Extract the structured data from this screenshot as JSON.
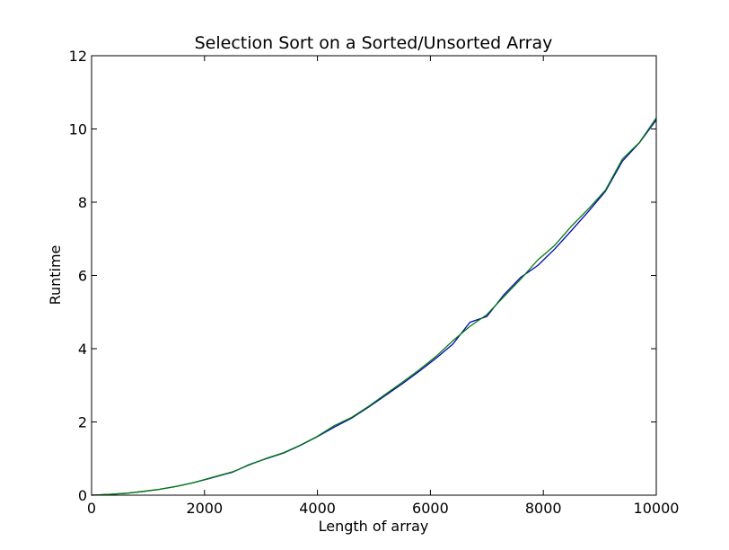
{
  "chart_data": {
    "type": "line",
    "title": "Selection Sort on a Sorted/Unsorted Array",
    "xlabel": "Length of array",
    "ylabel": "Runtime",
    "xlim": [
      0,
      10000
    ],
    "ylim": [
      0,
      12
    ],
    "xticks": [
      0,
      2000,
      4000,
      6000,
      8000,
      10000
    ],
    "yticks": [
      0,
      2,
      4,
      6,
      8,
      10,
      12
    ],
    "xtick_labels": [
      "0",
      "2000",
      "4000",
      "6000",
      "8000",
      "10000"
    ],
    "ytick_labels": [
      "0",
      "2",
      "4",
      "6",
      "8",
      "10",
      "12"
    ],
    "grid": false,
    "legend": "none",
    "series": [
      {
        "color": "#0000cc",
        "x": [
          0,
          300,
          600,
          900,
          1200,
          1500,
          1800,
          2100,
          2500,
          2800,
          3100,
          3400,
          3700,
          4000,
          4300,
          4600,
          4900,
          5200,
          5500,
          5800,
          6100,
          6400,
          6700,
          7000,
          7300,
          7600,
          7900,
          8200,
          8500,
          8800,
          9100,
          9400,
          9700,
          10000
        ],
        "y": [
          0.0,
          0.02,
          0.05,
          0.1,
          0.16,
          0.24,
          0.34,
          0.46,
          0.63,
          0.84,
          1.0,
          1.15,
          1.36,
          1.6,
          1.86,
          2.1,
          2.4,
          2.72,
          3.04,
          3.38,
          3.74,
          4.13,
          4.72,
          4.88,
          5.47,
          5.95,
          6.27,
          6.72,
          7.23,
          7.75,
          8.3,
          9.12,
          9.62,
          10.25
        ]
      },
      {
        "color": "#007f00",
        "x": [
          0,
          300,
          600,
          900,
          1200,
          1500,
          1800,
          2100,
          2500,
          2800,
          3100,
          3400,
          3700,
          4000,
          4300,
          4600,
          4900,
          5200,
          5500,
          5800,
          6100,
          6400,
          6700,
          7000,
          7300,
          7600,
          7900,
          8200,
          8500,
          8800,
          9100,
          9400,
          9700,
          10000
        ],
        "y": [
          0.0,
          0.02,
          0.05,
          0.1,
          0.16,
          0.24,
          0.34,
          0.47,
          0.64,
          0.83,
          1.01,
          1.16,
          1.37,
          1.61,
          1.9,
          2.12,
          2.42,
          2.75,
          3.08,
          3.42,
          3.79,
          4.22,
          4.61,
          4.93,
          5.42,
          5.9,
          6.42,
          6.82,
          7.35,
          7.82,
          8.33,
          9.18,
          9.63,
          10.3
        ]
      }
    ]
  }
}
